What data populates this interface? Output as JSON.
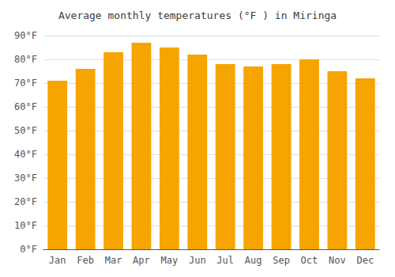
{
  "chart_data": {
    "type": "bar",
    "title": "Average monthly temperatures (°F ) in Miringa",
    "categories": [
      "Jan",
      "Feb",
      "Mar",
      "Apr",
      "May",
      "Jun",
      "Jul",
      "Aug",
      "Sep",
      "Oct",
      "Nov",
      "Dec"
    ],
    "values": [
      71,
      76,
      83,
      87,
      85,
      82,
      78,
      77,
      78,
      80,
      75,
      72
    ],
    "color": "#F5A400",
    "ylim": [
      0,
      90
    ],
    "yticks": [
      {
        "value": 0,
        "label": "0°F"
      },
      {
        "value": 10,
        "label": "10°F"
      },
      {
        "value": 20,
        "label": "20°F"
      },
      {
        "value": 30,
        "label": "30°F"
      },
      {
        "value": 40,
        "label": "40°F"
      },
      {
        "value": 50,
        "label": "50°F"
      },
      {
        "value": 60,
        "label": "60°F"
      },
      {
        "value": 70,
        "label": "70°F"
      },
      {
        "value": 80,
        "label": "80°F"
      },
      {
        "value": 90,
        "label": "90°F"
      }
    ],
    "grid": true
  }
}
